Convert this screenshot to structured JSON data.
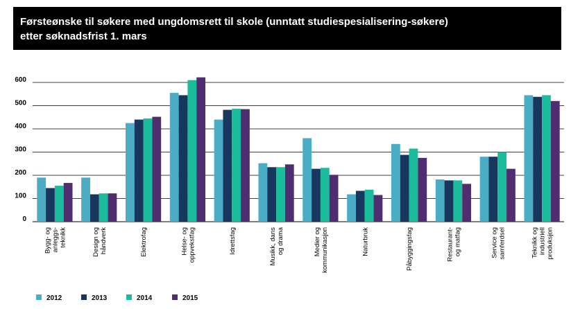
{
  "title_lines": [
    "Førsteønske til søkere med ungdomsrett til skole (unntatt studiespesialisering-søkere)",
    "etter søknadsfrist 1. mars"
  ],
  "chart_data": {
    "type": "bar",
    "title": "Førsteønske til søkere med ungdomsrett til skole (unntatt studiespesialisering-søkere) etter søknadsfrist 1. mars",
    "categories": [
      [
        "Bygg- og",
        "anleggs-",
        "teknikk"
      ],
      [
        "Design og",
        "håndverk"
      ],
      [
        "Elektrofag"
      ],
      [
        "Helse- og",
        "oppvekstfag"
      ],
      [
        "Idrettsfag"
      ],
      [
        "Musikk, dans",
        "og drama"
      ],
      [
        "Medier og",
        "kommunikasjon"
      ],
      [
        "Naturbruk"
      ],
      [
        "Påbyggingsfag"
      ],
      [
        "Restaurant-",
        "og matfag"
      ],
      [
        "Service og",
        "samferdsel"
      ],
      [
        "Teknikk og",
        "industriell",
        "produksjon"
      ]
    ],
    "series": [
      {
        "name": "2012",
        "color": "#4bacc6",
        "values": [
          190,
          190,
          425,
          555,
          440,
          252,
          360,
          118,
          335,
          182,
          280,
          545
        ]
      },
      {
        "name": "2013",
        "color": "#17375e",
        "values": [
          145,
          118,
          440,
          545,
          482,
          235,
          228,
          133,
          288,
          178,
          280,
          538
        ]
      },
      {
        "name": "2014",
        "color": "#1abc9c",
        "values": [
          155,
          122,
          445,
          610,
          487,
          235,
          232,
          138,
          315,
          178,
          300,
          545
        ]
      },
      {
        "name": "2015",
        "color": "#4f2d6e",
        "values": [
          167,
          122,
          452,
          622,
          485,
          247,
          202,
          115,
          275,
          163,
          228,
          520
        ]
      }
    ],
    "yticks": [
      0,
      100,
      200,
      300,
      400,
      500,
      600
    ],
    "ylim": [
      0,
      680
    ],
    "grid": true,
    "legend_position": "bottom-left",
    "xlabel": "",
    "ylabel": ""
  }
}
